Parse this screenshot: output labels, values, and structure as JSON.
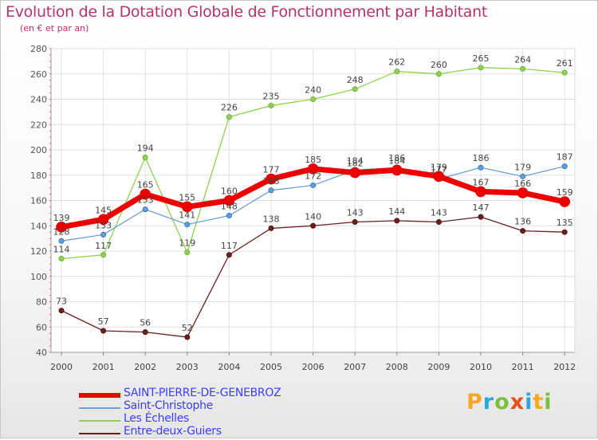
{
  "title": "Evolution de la Dotation Globale de Fonctionnement par Habitant",
  "subtitle": "(en € et par an)",
  "brand": {
    "text": "Proxiti",
    "colors": [
      "#f5a623",
      "#2aa9e0",
      "#7bc043",
      "#e94e1b",
      "#2aa9e0",
      "#f5a623",
      "#7bc043"
    ]
  },
  "chart_data": {
    "type": "line",
    "title": "Evolution de la Dotation Globale de Fonctionnement par Habitant",
    "ylabel": "(en € et par an)",
    "x": [
      "2000",
      "2001",
      "2002",
      "2003",
      "2004",
      "2005",
      "2006",
      "2007",
      "2008",
      "2009",
      "2010",
      "2011",
      "2012"
    ],
    "ylim": [
      40,
      280
    ],
    "yticks": [
      "40",
      "60",
      "80",
      "100",
      "120",
      "140",
      "160",
      "180",
      "200",
      "220",
      "240",
      "260",
      "280"
    ],
    "grid": true,
    "series": [
      {
        "name": "Les Échelles",
        "color": "#8fd14f",
        "values": [
          114,
          117,
          194,
          119,
          226,
          235,
          240,
          248,
          262,
          260,
          265,
          264,
          261
        ]
      },
      {
        "name": "Saint-Christophe",
        "color": "#6f9fd0",
        "values": [
          128,
          133,
          153,
          141,
          148,
          168,
          172,
          184,
          186,
          177,
          186,
          179,
          187
        ]
      },
      {
        "name": "Entre-deux-Guiers",
        "color": "#6b1f1f",
        "values": [
          73,
          57,
          56,
          52,
          117,
          138,
          140,
          143,
          144,
          143,
          147,
          136,
          135
        ]
      },
      {
        "name": "SAINT-PIERRE-DE-GENEBROZ",
        "color": "#ee0000",
        "values": [
          139,
          145,
          165,
          155,
          160,
          177,
          185,
          182,
          184,
          179,
          167,
          166,
          159
        ]
      }
    ],
    "legend": [
      {
        "name": "SAINT-PIERRE-DE-GENEBROZ",
        "color": "#ee0000"
      },
      {
        "name": "Saint-Christophe",
        "color": "#6f9fd0"
      },
      {
        "name": "Les Échelles",
        "color": "#8fd14f"
      },
      {
        "name": "Entre-deux-Guiers",
        "color": "#6b1f1f"
      }
    ]
  }
}
